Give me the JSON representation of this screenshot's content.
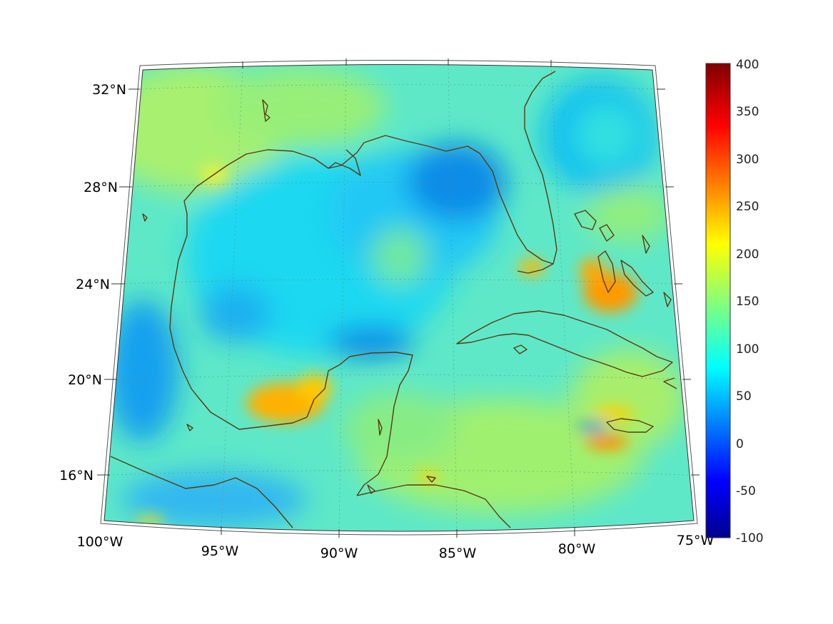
{
  "map": {
    "lat_labels": [
      "32°N",
      "28°N",
      "24°N",
      "20°N",
      "16°N"
    ],
    "lon_labels": [
      "100°W",
      "95°W",
      "90°W",
      "85°W",
      "80°W",
      "75°W"
    ],
    "extent": {
      "lon_min": -100,
      "lon_max": -75,
      "lat_min": 14,
      "lat_max": 32.5
    },
    "coastline_color": "#5a3a10",
    "colormap": "jet"
  },
  "colorbar": {
    "min": -100,
    "max": 400,
    "ticks": [
      "400",
      "350",
      "300",
      "250",
      "200",
      "150",
      "100",
      "50",
      "0",
      "-50",
      "-100"
    ],
    "colors": [
      "#00008f",
      "#0000ff",
      "#00ffff",
      "#ffff00",
      "#ff0000",
      "#800000"
    ]
  }
}
